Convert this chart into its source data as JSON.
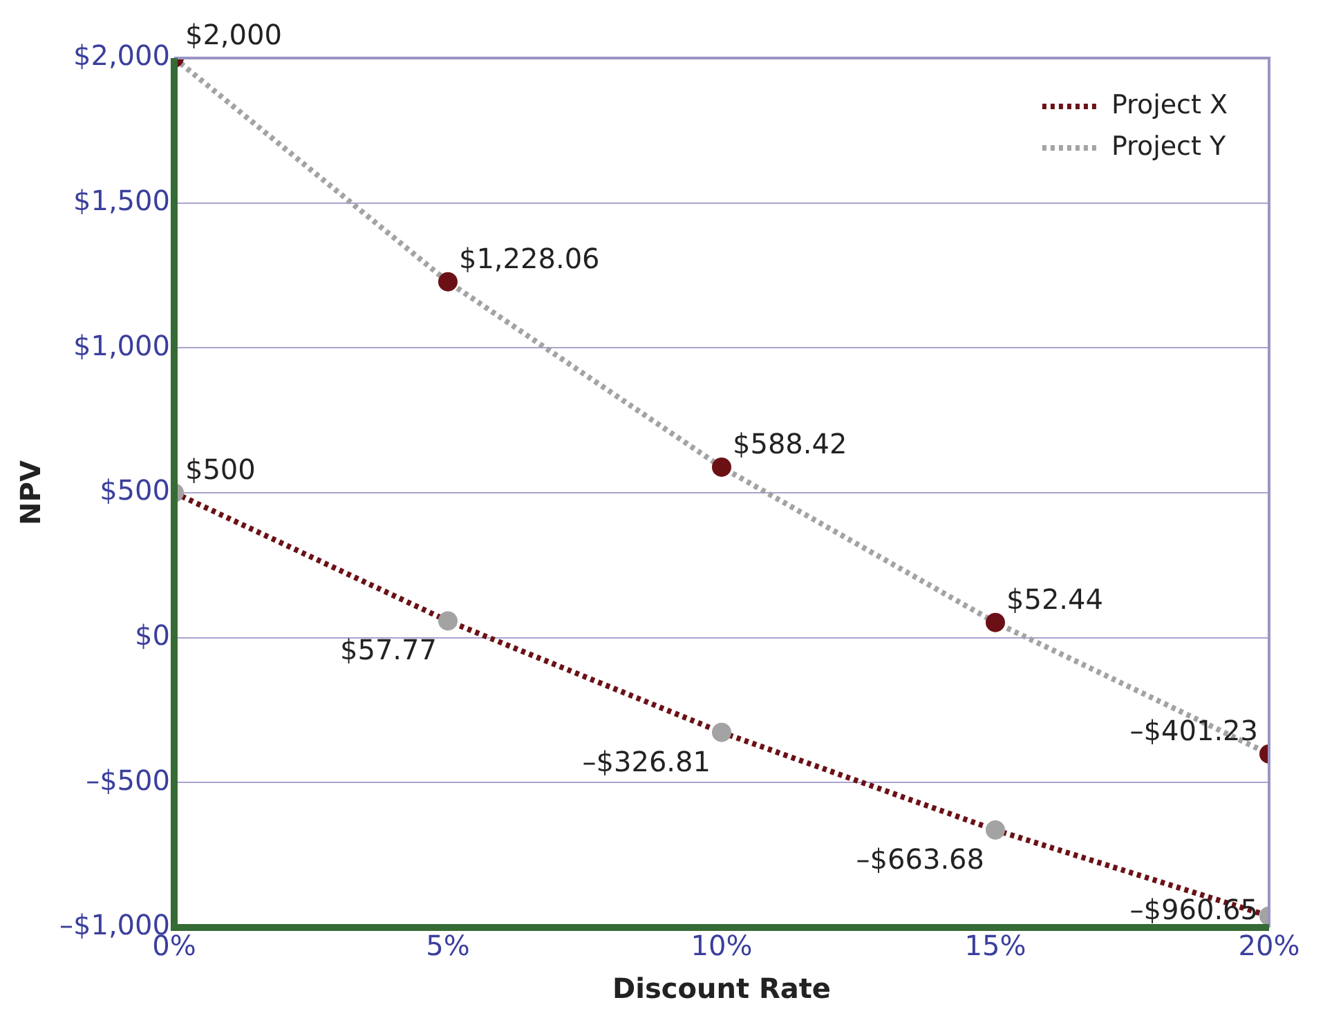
{
  "chart_data": {
    "type": "line",
    "xlabel": "Discount Rate",
    "ylabel": "NPV",
    "x": [
      0,
      5,
      10,
      15,
      20
    ],
    "series": [
      {
        "name": "Project X",
        "color": "#6b1116",
        "colors": [
          "#a3a3a3",
          "#a3a3a3",
          "#a3a3a3",
          "#a3a3a3",
          "#a3a3a3"
        ],
        "values": [
          500,
          57.77,
          -326.81,
          -663.68,
          -960.65
        ],
        "value_labels": [
          "$500",
          "$57.77",
          "–$326.81",
          "–$663.68",
          "–$960.65"
        ]
      },
      {
        "name": "Project Y",
        "color": "#a3a3a3",
        "colors": [
          "#6b1116",
          "#6b1116",
          "#6b1116",
          "#6b1116",
          "#6b1116"
        ],
        "values": [
          2000,
          1228.06,
          588.42,
          52.44,
          -401.23
        ],
        "value_labels": [
          "$2,000",
          "$1,228.06",
          "$588.42",
          "$52.44",
          "–$401.23"
        ]
      }
    ],
    "xlim": [
      0,
      20
    ],
    "xticks": [
      {
        "value": 0,
        "label": "0%"
      },
      {
        "value": 5,
        "label": "5%"
      },
      {
        "value": 10,
        "label": "10%"
      },
      {
        "value": 15,
        "label": "15%"
      },
      {
        "value": 20,
        "label": "20%"
      }
    ],
    "ylim": [
      -1000,
      2000
    ],
    "yticks": [
      {
        "value": -1000,
        "label": "–$1,000"
      },
      {
        "value": -500,
        "label": "–$500"
      },
      {
        "value": 0,
        "label": "$0"
      },
      {
        "value": 500,
        "label": "$500"
      },
      {
        "value": 1000,
        "label": "$1,000"
      },
      {
        "value": 1500,
        "label": "$1,500"
      },
      {
        "value": 2000,
        "label": "$2,000"
      }
    ],
    "grid": "y",
    "legend": "top right",
    "marker": "circle",
    "line_style": "dotted"
  }
}
